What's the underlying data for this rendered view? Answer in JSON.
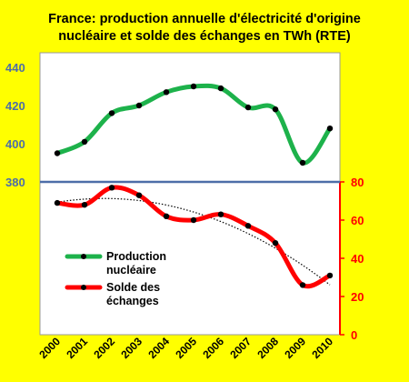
{
  "chart_data": {
    "type": "line",
    "title_line1": "France: production annuelle d'électricité  d'origine",
    "title_line2": "nucléaire et solde des échanges en TWh (RTE)",
    "x": [
      "2000",
      "2001",
      "2002",
      "2003",
      "2004",
      "2005",
      "2006",
      "2007",
      "2008",
      "2009",
      "2010"
    ],
    "series": [
      {
        "name": "Production nucléaire",
        "name_lines": [
          "Production",
          "nucléaire"
        ],
        "axis": "left",
        "color": "#1db24b",
        "values": [
          395,
          401,
          416,
          420,
          427,
          430,
          429,
          419,
          418,
          390,
          408
        ]
      },
      {
        "name": "Solde des échanges",
        "name_lines": [
          "Solde des",
          "échanges"
        ],
        "axis": "right",
        "color": "#ff0000",
        "values": [
          69,
          68,
          77,
          73,
          62,
          60,
          63,
          57,
          48,
          26,
          31
        ]
      }
    ],
    "left_axis": {
      "ticks": [
        380,
        400,
        420,
        440
      ],
      "color": "#4d6ea8"
    },
    "right_axis": {
      "ticks": [
        0,
        20,
        40,
        60,
        80
      ],
      "color": "#ff0000"
    },
    "trendline": {
      "of": "Solde des échanges",
      "style": "dotted",
      "color": "#000000"
    },
    "legend_position": "left-middle",
    "grid": false
  }
}
